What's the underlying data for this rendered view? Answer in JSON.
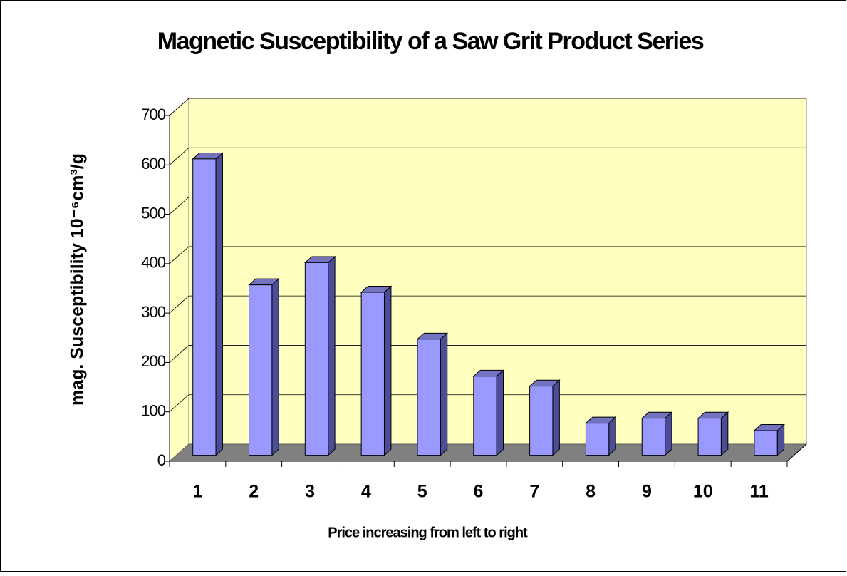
{
  "chart_data": {
    "type": "bar3d",
    "title": "Magnetic Susceptibility of a Saw Grit Product Series",
    "x_label": "Price increasing from left to right",
    "y_label": "mag. Susceptibility 10⁻⁶cm³/g",
    "categories": [
      "1",
      "2",
      "3",
      "4",
      "5",
      "6",
      "7",
      "8",
      "9",
      "10",
      "11"
    ],
    "values": [
      600,
      345,
      390,
      330,
      235,
      160,
      140,
      65,
      75,
      75,
      50
    ],
    "color": "#9999ff",
    "ylim": [
      0,
      700
    ],
    "yticks": [
      0,
      100,
      200,
      300,
      400,
      500,
      600,
      700
    ],
    "grid": true
  }
}
